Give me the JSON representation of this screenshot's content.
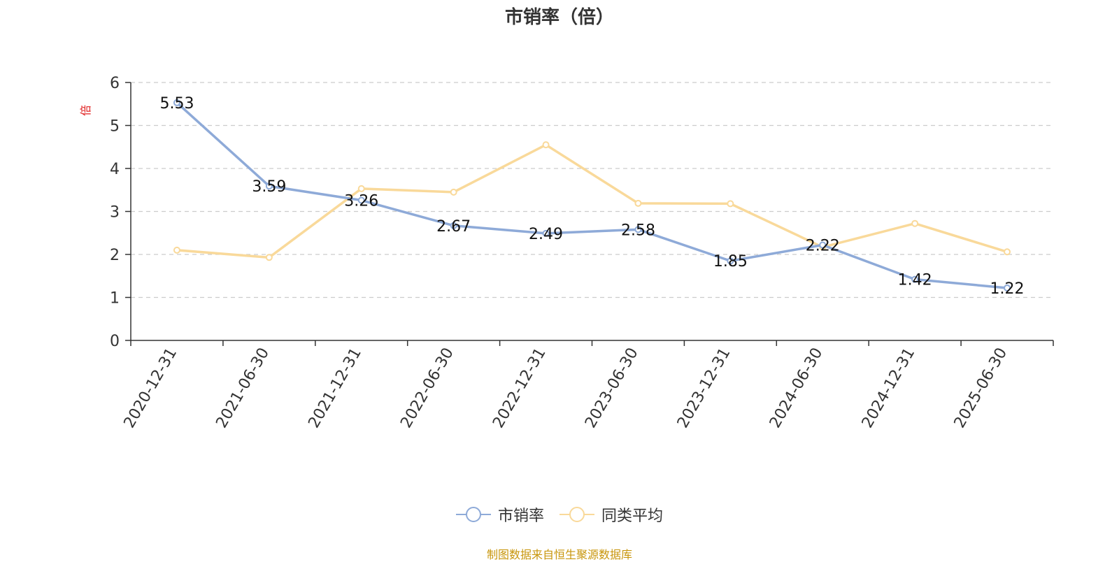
{
  "title": "市销率（倍）",
  "source_text": "制图数据来自恒生聚源数据库",
  "colors": {
    "series1": "#8eaad8",
    "series2": "#f9d99a",
    "unit_label": "#e02020",
    "source": "#c8960c",
    "axis": "#333333",
    "grid": "#cccccc"
  },
  "chart_data": {
    "type": "line",
    "title": "市销率（倍）",
    "ylabel": "倍",
    "ylim": [
      0,
      6
    ],
    "yticks": [
      0,
      1,
      2,
      3,
      4,
      5,
      6
    ],
    "grid": true,
    "legend_position": "bottom-center",
    "categories": [
      "2020-12-31",
      "2021-06-30",
      "2021-12-31",
      "2022-06-30",
      "2022-12-31",
      "2023-06-30",
      "2023-12-31",
      "2024-06-30",
      "2024-12-31",
      "2025-06-30"
    ],
    "series": [
      {
        "name": "市销率",
        "color": "#8eaad8",
        "values": [
          5.53,
          3.59,
          3.26,
          2.67,
          2.49,
          2.58,
          1.85,
          2.22,
          1.42,
          1.22
        ],
        "labels": [
          "5.53",
          "3.59",
          "3.26",
          "2.67",
          "2.49",
          "2.58",
          "1.85",
          "2.22",
          "1.42",
          "1.22"
        ]
      },
      {
        "name": "同类平均",
        "color": "#f9d99a",
        "values": [
          2.1,
          1.93,
          3.53,
          3.45,
          4.55,
          3.19,
          3.18,
          2.17,
          2.72,
          2.06
        ]
      }
    ]
  }
}
